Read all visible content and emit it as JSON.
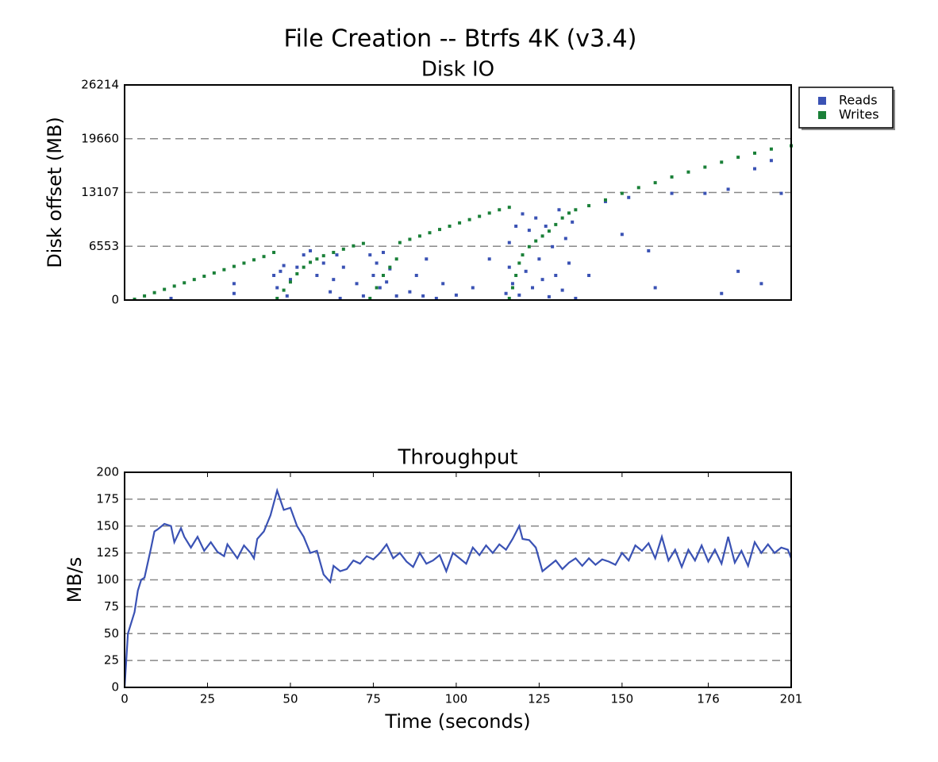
{
  "title": "File Creation -- Btrfs 4K (v3.4)",
  "chart_data": [
    {
      "type": "scatter",
      "title": "Disk IO",
      "ylabel": "Disk offset (MB)",
      "xlim": [
        0,
        201
      ],
      "ylim": [
        0,
        26214
      ],
      "yticks": [
        0,
        6553,
        13107,
        19660,
        26214
      ],
      "grid": true,
      "legend": "outside-upper-right",
      "series": [
        {
          "name": "Reads",
          "color": "#3a52b4",
          "x": [
            14,
            33,
            33,
            45,
            46,
            47,
            48,
            49,
            50,
            52,
            54,
            56,
            58,
            60,
            62,
            63,
            64,
            65,
            66,
            70,
            72,
            74,
            75,
            76,
            77,
            78,
            79,
            80,
            82,
            86,
            88,
            90,
            91,
            94,
            96,
            100,
            105,
            110,
            115,
            116,
            116,
            117,
            118,
            119,
            120,
            121,
            122,
            123,
            124,
            125,
            126,
            127,
            128,
            129,
            130,
            131,
            132,
            133,
            134,
            135,
            136,
            140,
            145,
            150,
            152,
            158,
            160,
            165,
            175,
            182,
            190,
            192,
            195,
            198,
            180,
            185
          ],
          "values": [
            200,
            800,
            2000,
            3000,
            1500,
            3500,
            4200,
            500,
            2500,
            4000,
            5500,
            6000,
            3000,
            4500,
            1000,
            2500,
            5500,
            200,
            4000,
            2000,
            500,
            5500,
            3000,
            4500,
            1500,
            5800,
            2200,
            3800,
            500,
            1000,
            3000,
            500,
            5000,
            200,
            2000,
            600,
            1500,
            5000,
            800,
            4000,
            7000,
            2000,
            9000,
            600,
            10500,
            3500,
            8500,
            1500,
            10000,
            5000,
            2500,
            9000,
            400,
            6500,
            3000,
            11000,
            1200,
            7500,
            4500,
            9500,
            200,
            3000,
            12000,
            8000,
            12500,
            6000,
            1500,
            13000,
            13000,
            13500,
            16000,
            2000,
            17000,
            13000,
            800,
            3500
          ]
        },
        {
          "name": "Writes",
          "color": "#1a8038",
          "x": [
            3,
            6,
            9,
            12,
            15,
            18,
            21,
            24,
            27,
            30,
            33,
            36,
            39,
            42,
            45,
            46,
            48,
            50,
            52,
            54,
            56,
            58,
            60,
            63,
            66,
            69,
            72,
            74,
            76,
            78,
            80,
            82,
            83,
            86,
            89,
            92,
            95,
            98,
            101,
            104,
            107,
            110,
            113,
            116,
            116,
            117,
            118,
            119,
            120,
            122,
            124,
            126,
            128,
            130,
            132,
            134,
            136,
            140,
            145,
            150,
            155,
            160,
            165,
            170,
            175,
            180,
            185,
            190,
            195,
            201
          ],
          "values": [
            100,
            500,
            900,
            1300,
            1700,
            2100,
            2500,
            2900,
            3300,
            3700,
            4100,
            4500,
            4900,
            5300,
            5800,
            200,
            1200,
            2200,
            3200,
            4000,
            4600,
            5000,
            5400,
            5800,
            6200,
            6600,
            6900,
            200,
            1500,
            3000,
            4000,
            5000,
            7000,
            7400,
            7800,
            8200,
            8600,
            9000,
            9400,
            9800,
            10200,
            10600,
            11000,
            11300,
            200,
            1500,
            3000,
            4500,
            5500,
            6500,
            7200,
            7800,
            8400,
            9200,
            10000,
            10600,
            11000,
            11500,
            12200,
            13000,
            13700,
            14300,
            15000,
            15600,
            16200,
            16800,
            17400,
            17900,
            18400,
            18800
          ]
        }
      ]
    },
    {
      "type": "line",
      "title": "Throughput",
      "xlabel": "Time (seconds)",
      "ylabel": "MB/s",
      "xlim": [
        0,
        201
      ],
      "xticks": [
        0,
        25,
        50,
        75,
        100,
        125,
        150,
        176,
        201
      ],
      "ylim": [
        0,
        200
      ],
      "yticks": [
        0,
        25,
        50,
        75,
        100,
        125,
        150,
        175,
        200
      ],
      "grid": true,
      "color": "#3a52b4",
      "x": [
        0,
        1,
        2,
        3,
        4,
        5,
        6,
        8,
        9,
        10,
        12,
        14,
        15,
        17,
        18,
        20,
        22,
        24,
        26,
        28,
        30,
        31,
        34,
        36,
        38,
        39,
        40,
        42,
        44,
        46,
        48,
        50,
        52,
        54,
        56,
        58,
        60,
        62,
        63,
        65,
        67,
        69,
        71,
        73,
        75,
        77,
        79,
        81,
        83,
        85,
        87,
        89,
        91,
        93,
        95,
        97,
        99,
        101,
        103,
        105,
        107,
        109,
        111,
        113,
        115,
        117,
        119,
        120,
        122,
        124,
        126,
        128,
        130,
        132,
        134,
        136,
        138,
        140,
        142,
        144,
        146,
        148,
        150,
        152,
        154,
        156,
        158,
        160,
        162,
        164,
        166,
        168,
        170,
        172,
        174,
        176,
        178,
        180,
        182,
        184,
        186,
        188,
        190,
        192,
        194,
        196,
        198,
        200,
        201
      ],
      "values": [
        0,
        50,
        60,
        70,
        90,
        100,
        102,
        130,
        145,
        147,
        152,
        150,
        135,
        148,
        140,
        130,
        140,
        127,
        135,
        126,
        122,
        133,
        120,
        132,
        125,
        120,
        138,
        145,
        160,
        183,
        165,
        167,
        150,
        140,
        125,
        127,
        105,
        98,
        113,
        108,
        110,
        118,
        115,
        122,
        119,
        125,
        133,
        120,
        125,
        117,
        112,
        125,
        115,
        118,
        123,
        108,
        125,
        120,
        115,
        130,
        123,
        132,
        125,
        133,
        128,
        138,
        150,
        138,
        137,
        130,
        108,
        113,
        118,
        110,
        116,
        120,
        113,
        120,
        114,
        119,
        117,
        114,
        125,
        118,
        132,
        127,
        134,
        120,
        140,
        118,
        128,
        112,
        128,
        118,
        132,
        117,
        128,
        115,
        140,
        116,
        127,
        113,
        135,
        125,
        133,
        125,
        130,
        128,
        120
      ]
    }
  ]
}
